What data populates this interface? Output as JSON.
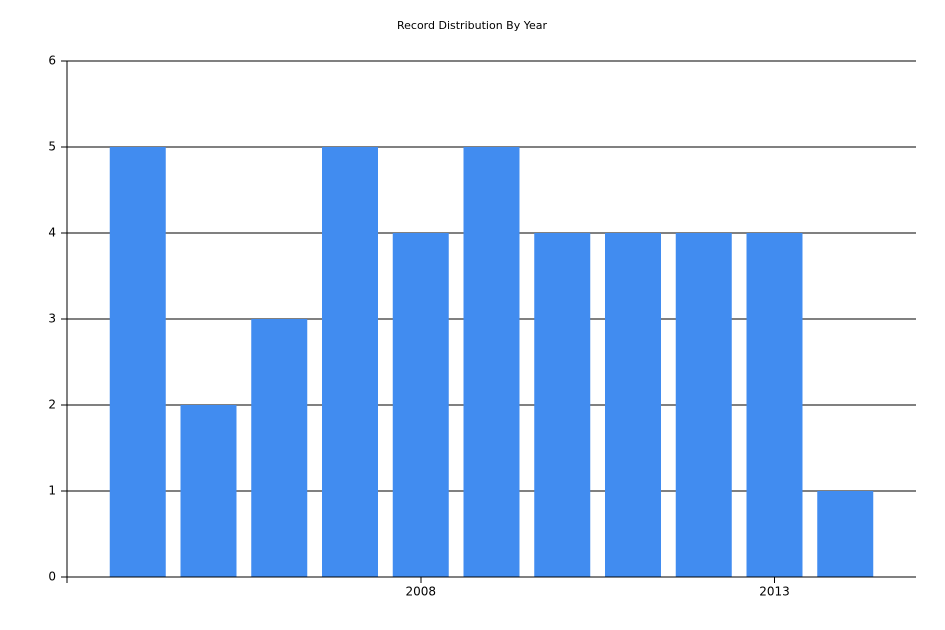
{
  "chart_data": {
    "type": "bar",
    "title": "Record Distribution By Year",
    "categories": [
      null,
      null,
      null,
      null,
      "2008",
      null,
      null,
      null,
      null,
      "2013",
      null
    ],
    "values": [
      5,
      2,
      3,
      5,
      4,
      5,
      4,
      4,
      4,
      4,
      1
    ],
    "color": "#418cf0",
    "ylim": [
      0,
      6
    ],
    "yticks": [
      0,
      1,
      2,
      3,
      4,
      5,
      6
    ],
    "grid": true
  }
}
